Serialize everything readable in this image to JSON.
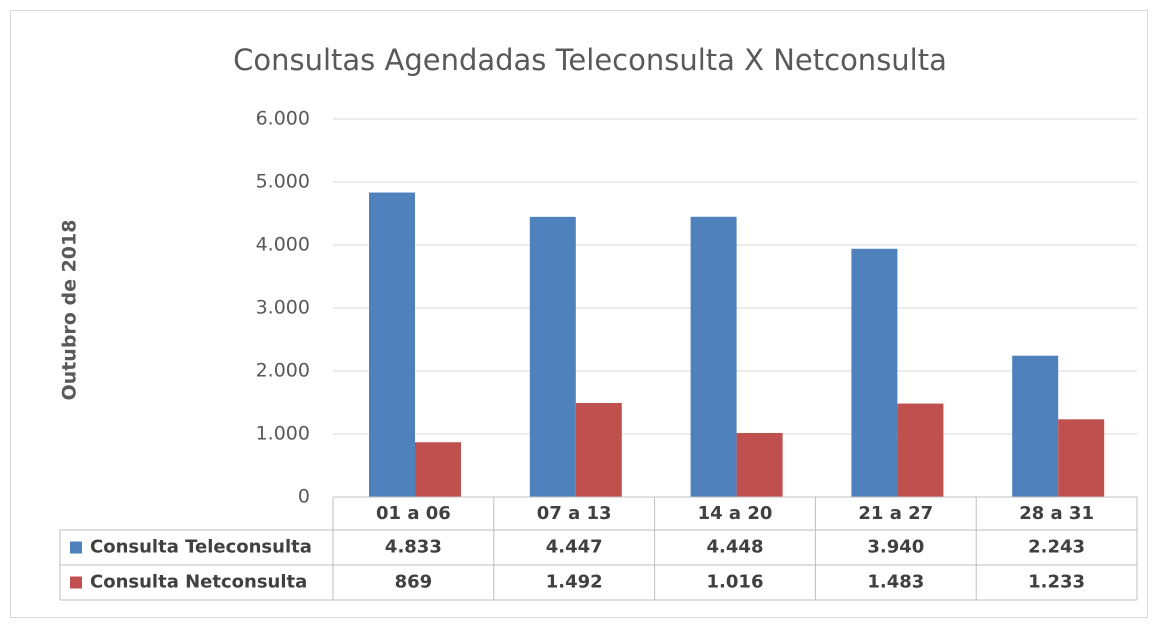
{
  "chart_data": {
    "type": "bar",
    "title": "Consultas Agendadas Teleconsulta X Netconsulta",
    "y_label": "Outubro de 2018",
    "categories": [
      "01 a 06",
      "07 a 13",
      "14 a 20",
      "21 a 27",
      "28 a 31"
    ],
    "series": [
      {
        "name": "Consulta Teleconsulta",
        "color": "#4f81bd",
        "values": [
          4833,
          4447,
          4448,
          3940,
          2243
        ],
        "value_labels": [
          "4.833",
          "4.447",
          "4.448",
          "3.940",
          "2.243"
        ]
      },
      {
        "name": "Consulta Netconsulta",
        "color": "#c0504d",
        "values": [
          869,
          1492,
          1016,
          1483,
          1233
        ],
        "value_labels": [
          "869",
          "1.492",
          "1.016",
          "1.483",
          "1.233"
        ]
      }
    ],
    "ylim": [
      0,
      6000
    ],
    "yticks": [
      0,
      {
        "value": 1000,
        "label": "1.000"
      },
      {
        "value": 2000,
        "label": "2.000"
      },
      {
        "value": 3000,
        "label": "3.000"
      },
      {
        "value": 4000,
        "label": "4.000"
      },
      {
        "value": 5000,
        "label": "5.000"
      },
      {
        "value": 6000,
        "label": "6.000"
      }
    ],
    "grid": true
  }
}
